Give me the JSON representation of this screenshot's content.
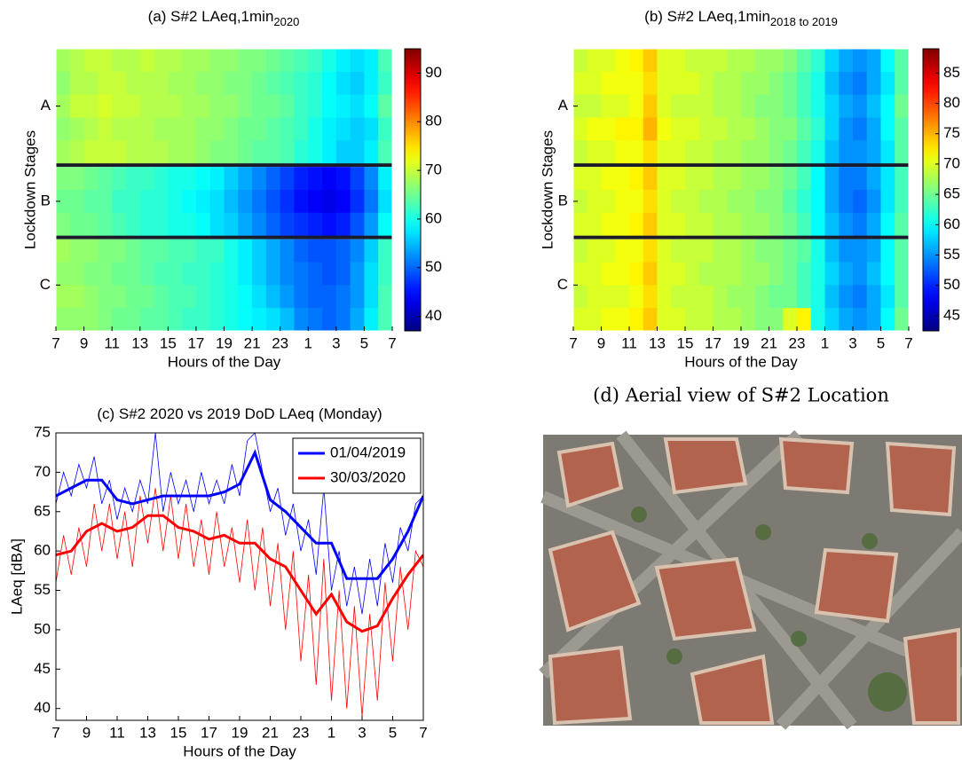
{
  "chart_data": [
    {
      "type": "heatmap",
      "title": "(a) S#2 LAeq,1min",
      "title_subscript": "2020",
      "xlabel": "Hours of the Day",
      "ylabel": "Lockdown Stages",
      "xlim": [
        7,
        31
      ],
      "xticks": [
        7,
        9,
        11,
        13,
        15,
        17,
        19,
        21,
        23,
        {
          "value": 25,
          "label": "1"
        },
        {
          "value": 27,
          "label": "3"
        },
        {
          "value": 29,
          "label": "5"
        },
        {
          "value": 31,
          "label": "7"
        }
      ],
      "yticks": [
        {
          "value": 2,
          "label": "A"
        },
        {
          "value": 7,
          "label": "B"
        },
        {
          "value": 11.5,
          "label": "C"
        }
      ],
      "clim": [
        37,
        95
      ],
      "cticks": [
        40,
        50,
        60,
        70,
        80,
        90
      ],
      "colormap": "jet",
      "z": [
        [
          68,
          69,
          70,
          70,
          69,
          69,
          70,
          69,
          69,
          68,
          68,
          67,
          67,
          66,
          66,
          65,
          64,
          63,
          62,
          60,
          58,
          57,
          58,
          63
        ],
        [
          67,
          69,
          69,
          70,
          70,
          69,
          69,
          69,
          68,
          68,
          67,
          67,
          66,
          66,
          65,
          64,
          63,
          62,
          61,
          59,
          57,
          56,
          58,
          62
        ],
        [
          68,
          70,
          70,
          71,
          70,
          70,
          69,
          69,
          69,
          68,
          68,
          67,
          67,
          66,
          65,
          65,
          64,
          62,
          61,
          59,
          58,
          57,
          59,
          64
        ],
        [
          67,
          68,
          69,
          70,
          69,
          69,
          69,
          68,
          68,
          68,
          67,
          67,
          66,
          65,
          65,
          64,
          63,
          62,
          60,
          58,
          57,
          56,
          57,
          62
        ],
        [
          68,
          69,
          70,
          70,
          70,
          69,
          69,
          69,
          68,
          68,
          67,
          66,
          66,
          65,
          64,
          64,
          63,
          61,
          60,
          58,
          56,
          56,
          58,
          63
        ],
        null,
        [
          66,
          66,
          65,
          64,
          63,
          62,
          62,
          61,
          60,
          60,
          59,
          58,
          56,
          54,
          52,
          50,
          48,
          46,
          45,
          44,
          45,
          48,
          52,
          58
        ],
        [
          65,
          65,
          64,
          64,
          62,
          62,
          61,
          61,
          60,
          59,
          58,
          57,
          55,
          53,
          51,
          49,
          47,
          45,
          44,
          43,
          44,
          47,
          51,
          57
        ],
        [
          66,
          65,
          65,
          64,
          63,
          62,
          61,
          61,
          60,
          60,
          59,
          57,
          56,
          54,
          52,
          50,
          48,
          47,
          46,
          45,
          46,
          49,
          53,
          59
        ],
        null,
        [
          68,
          67,
          67,
          66,
          66,
          65,
          64,
          64,
          63,
          63,
          62,
          62,
          60,
          58,
          56,
          54,
          52,
          50,
          49,
          49,
          50,
          52,
          56,
          62
        ],
        [
          67,
          67,
          66,
          66,
          65,
          65,
          64,
          63,
          63,
          62,
          62,
          61,
          60,
          58,
          56,
          54,
          52,
          51,
          50,
          49,
          50,
          53,
          57,
          62
        ],
        [
          68,
          68,
          67,
          66,
          66,
          65,
          65,
          64,
          63,
          63,
          62,
          61,
          60,
          59,
          57,
          55,
          53,
          51,
          50,
          50,
          51,
          53,
          57,
          63
        ],
        [
          67,
          67,
          67,
          66,
          65,
          65,
          64,
          64,
          63,
          62,
          62,
          61,
          60,
          59,
          58,
          57,
          55,
          52,
          51,
          50,
          51,
          54,
          58,
          63
        ]
      ]
    },
    {
      "type": "heatmap",
      "title": "(b) S#2 LAeq,1min",
      "title_subscript": "2018 to 2019",
      "xlabel": "Hours of the Day",
      "ylabel": "Lockdown Stages",
      "xlim": [
        7,
        31
      ],
      "xticks": [
        7,
        9,
        11,
        13,
        15,
        17,
        19,
        21,
        23,
        {
          "value": 25,
          "label": "1"
        },
        {
          "value": 27,
          "label": "3"
        },
        {
          "value": 29,
          "label": "5"
        },
        {
          "value": 31,
          "label": "7"
        }
      ],
      "yticks": [
        {
          "value": 2,
          "label": "A"
        },
        {
          "value": 7,
          "label": "B"
        },
        {
          "value": 11.5,
          "label": "C"
        }
      ],
      "clim": [
        42.5,
        89
      ],
      "cticks": [
        45,
        50,
        55,
        60,
        65,
        70,
        75,
        80,
        85
      ],
      "colormap": "jet",
      "z": [
        [
          69,
          70,
          70,
          71,
          72,
          74,
          70,
          70,
          69,
          69,
          69,
          68,
          68,
          67,
          67,
          66,
          64,
          62,
          58,
          56,
          55,
          56,
          60,
          64
        ],
        [
          70,
          70,
          71,
          71,
          71,
          73,
          70,
          70,
          70,
          69,
          68,
          68,
          67,
          67,
          66,
          65,
          63,
          61,
          57,
          55,
          54,
          56,
          59,
          64
        ],
        [
          69,
          69,
          70,
          70,
          71,
          74,
          70,
          69,
          69,
          69,
          68,
          68,
          67,
          66,
          66,
          65,
          63,
          61,
          58,
          56,
          55,
          57,
          60,
          65
        ],
        [
          70,
          71,
          71,
          72,
          72,
          75,
          71,
          70,
          70,
          69,
          69,
          68,
          68,
          67,
          66,
          66,
          64,
          62,
          58,
          55,
          54,
          56,
          60,
          64
        ],
        [
          69,
          70,
          70,
          71,
          71,
          73,
          70,
          70,
          69,
          69,
          68,
          68,
          67,
          67,
          66,
          65,
          63,
          61,
          57,
          55,
          55,
          56,
          59,
          64
        ],
        null,
        [
          70,
          70,
          71,
          71,
          72,
          74,
          70,
          70,
          69,
          69,
          68,
          68,
          67,
          67,
          66,
          65,
          63,
          60,
          56,
          54,
          54,
          56,
          59,
          63
        ],
        [
          69,
          70,
          70,
          71,
          71,
          73,
          70,
          69,
          69,
          68,
          68,
          67,
          67,
          66,
          66,
          64,
          62,
          60,
          56,
          54,
          53,
          55,
          59,
          63
        ],
        [
          70,
          70,
          71,
          71,
          72,
          74,
          70,
          70,
          69,
          69,
          68,
          68,
          67,
          67,
          66,
          65,
          63,
          60,
          57,
          55,
          54,
          56,
          60,
          64
        ],
        null,
        [
          69,
          70,
          70,
          71,
          71,
          73,
          70,
          69,
          69,
          69,
          68,
          68,
          67,
          66,
          66,
          65,
          64,
          61,
          57,
          55,
          55,
          56,
          60,
          64
        ],
        [
          70,
          70,
          71,
          71,
          72,
          74,
          70,
          70,
          69,
          68,
          68,
          68,
          67,
          67,
          66,
          65,
          63,
          61,
          58,
          56,
          55,
          57,
          60,
          64
        ],
        [
          69,
          70,
          70,
          70,
          71,
          73,
          70,
          69,
          69,
          69,
          68,
          67,
          67,
          66,
          65,
          65,
          63,
          61,
          57,
          55,
          54,
          56,
          59,
          64
        ],
        [
          70,
          70,
          71,
          71,
          72,
          74,
          70,
          70,
          69,
          69,
          68,
          68,
          67,
          66,
          66,
          70,
          72,
          61,
          58,
          56,
          55,
          56,
          60,
          65
        ]
      ]
    },
    {
      "type": "line",
      "title": "(c) S#2 2020 vs 2019 DoD LAeq (Monday)",
      "xlabel": "Hours of the Day",
      "ylabel": "LAeq [dBA]",
      "xlim": [
        7,
        31
      ],
      "ylim": [
        38.5,
        75
      ],
      "xticks": [
        7,
        9,
        11,
        13,
        15,
        17,
        19,
        21,
        23,
        {
          "value": 25,
          "label": "1"
        },
        {
          "value": 27,
          "label": "3"
        },
        {
          "value": 29,
          "label": "5"
        },
        {
          "value": 31,
          "label": "7"
        }
      ],
      "yticks": [
        40,
        45,
        50,
        55,
        60,
        65,
        70,
        75
      ],
      "legend": "upper right",
      "x": [
        7,
        8,
        9,
        10,
        11,
        12,
        13,
        14,
        15,
        16,
        17,
        18,
        19,
        20,
        21,
        22,
        23,
        24,
        25,
        26,
        27,
        28,
        29,
        30,
        31
      ],
      "fine_x": [
        7,
        7.5,
        8,
        8.5,
        9,
        9.5,
        10,
        10.5,
        11,
        11.5,
        12,
        12.5,
        13,
        13.5,
        14,
        14.5,
        15,
        15.5,
        16,
        16.5,
        17,
        17.5,
        18,
        18.5,
        19,
        19.5,
        20,
        20.5,
        21,
        21.5,
        22,
        22.5,
        23,
        23.5,
        24,
        24.5,
        25,
        25.5,
        26,
        26.5,
        27,
        27.5,
        28,
        28.5,
        29,
        29.5,
        30,
        30.5,
        31
      ],
      "series": [
        {
          "name": "01/04/2019",
          "color": "#0000ff",
          "values": [
            67,
            68,
            69,
            69,
            66.5,
            66,
            66.5,
            67,
            67,
            67,
            67,
            67.5,
            68.5,
            72.5,
            66.5,
            65,
            63,
            61,
            61,
            56.5,
            56.5,
            56.5,
            59,
            62.5,
            67
          ],
          "fine_values": [
            66,
            70,
            67,
            71,
            68,
            72,
            66,
            69,
            64,
            68,
            65,
            69,
            66,
            75,
            65,
            70,
            66,
            69,
            65,
            70,
            66,
            69,
            66,
            71,
            67,
            74,
            75,
            70,
            65,
            68,
            62,
            66,
            60,
            64,
            57,
            68,
            55,
            60,
            53,
            58,
            52,
            59,
            53,
            61,
            56,
            63,
            60,
            66,
            67
          ]
        },
        {
          "name": "30/03/2020",
          "color": "#ff0000",
          "values": [
            59.5,
            60,
            62.5,
            63.5,
            62.5,
            63,
            64.5,
            64.5,
            63,
            62.5,
            61.5,
            62,
            61,
            61,
            59,
            58,
            55,
            52,
            54.5,
            51,
            49.8,
            50.5,
            54,
            57,
            59.5
          ],
          "fine_values": [
            56,
            62,
            57,
            63,
            58,
            66,
            60,
            66,
            59,
            65,
            58,
            67,
            61,
            68,
            60,
            67,
            59,
            66,
            58,
            64,
            57,
            65,
            58,
            63,
            56,
            64,
            55,
            63,
            53,
            61,
            50,
            60,
            46,
            57,
            43,
            59,
            41,
            55,
            40,
            53,
            39,
            52,
            41,
            56,
            46,
            58,
            50,
            60,
            58
          ]
        }
      ]
    }
  ],
  "image_panel": {
    "title": "(d) Aerial view of S#2 Location"
  }
}
